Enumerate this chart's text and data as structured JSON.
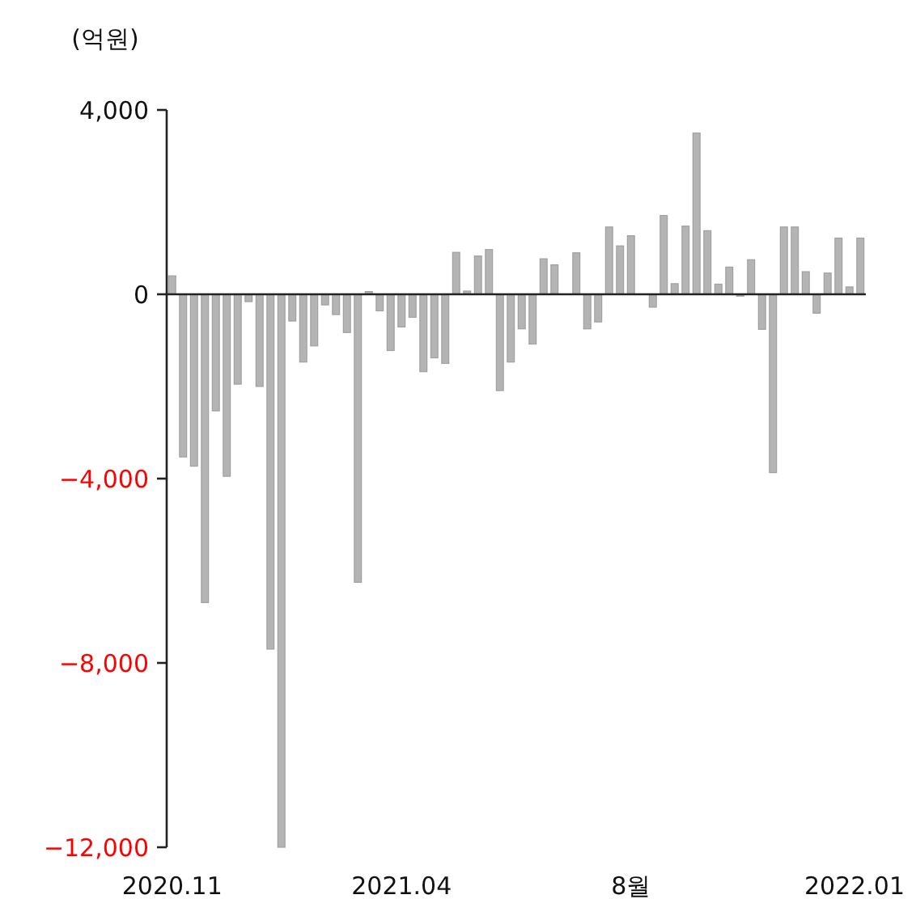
{
  "chart_data": {
    "type": "bar",
    "ylabel": "(억원)",
    "categories": [
      "2020.11",
      null,
      null,
      null,
      null,
      null,
      null,
      null,
      null,
      null,
      null,
      null,
      null,
      null,
      null,
      null,
      null,
      null,
      null,
      null,
      null,
      "2021.04",
      null,
      null,
      null,
      null,
      null,
      null,
      null,
      null,
      null,
      null,
      null,
      null,
      null,
      null,
      null,
      null,
      null,
      null,
      null,
      null,
      "8월",
      null,
      null,
      null,
      null,
      null,
      null,
      null,
      null,
      null,
      null,
      null,
      null,
      null,
      null,
      null,
      null,
      null,
      null,
      null,
      null,
      "2022.01"
    ],
    "values": [
      400,
      -3530,
      -3730,
      -6690,
      -2530,
      -3950,
      -1950,
      -160,
      -2000,
      -7700,
      -12000,
      -580,
      -1470,
      -1120,
      -230,
      -440,
      -830,
      -6250,
      60,
      -360,
      -1220,
      -710,
      -500,
      -1680,
      -1380,
      -1500,
      910,
      70,
      830,
      970,
      -2090,
      -1470,
      -750,
      -1080,
      770,
      640,
      null,
      900,
      -750,
      -600,
      1460,
      1050,
      1270,
      null,
      -280,
      1710,
      230,
      1480,
      3500,
      1380,
      220,
      590,
      -40,
      750,
      -760,
      -3870,
      1460,
      1460,
      490,
      -410,
      460,
      1220,
      160,
      1220
    ],
    "color": "#b4b4b4",
    "ylim": [
      -12000,
      4000
    ],
    "yticks": [
      {
        "value": -12000,
        "label": "−12,000"
      },
      {
        "value": -8000,
        "label": "−8,000"
      },
      {
        "value": -4000,
        "label": "−4,000"
      },
      {
        "value": 0,
        "label": "0"
      },
      {
        "value": 4000,
        "label": "4,000"
      }
    ]
  }
}
